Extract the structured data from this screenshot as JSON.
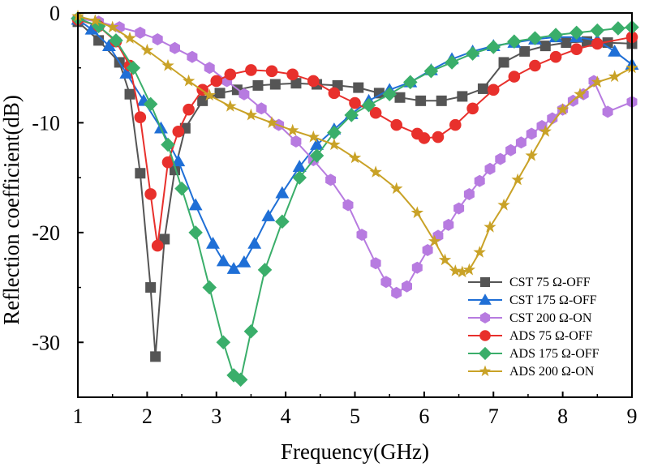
{
  "chart_data": {
    "type": "line",
    "xlabel": "Frequency(GHz)",
    "ylabel": "Reflection coefficient(dB)",
    "xlim": [
      1,
      9
    ],
    "ylim": [
      -35,
      0
    ],
    "xticks": [
      "1",
      "2",
      "3",
      "4",
      "5",
      "6",
      "7",
      "8",
      "9"
    ],
    "yticks": [
      "0",
      "-10",
      "-20",
      "-30"
    ],
    "grid": false,
    "legend_position": "bottom-right",
    "series": [
      {
        "name": "CST 75 Ω-OFF",
        "color": "#555555",
        "marker": "square",
        "x": [
          1.0,
          1.3,
          1.6,
          1.75,
          1.9,
          2.05,
          2.12,
          2.25,
          2.4,
          2.55,
          2.8,
          3.05,
          3.3,
          3.6,
          3.85,
          4.15,
          4.45,
          4.75,
          5.05,
          5.35,
          5.65,
          5.95,
          6.25,
          6.55,
          6.85,
          7.15,
          7.45,
          7.75,
          8.05,
          8.35,
          8.65,
          9.0
        ],
        "y": [
          -0.8,
          -2.5,
          -4.5,
          -7.4,
          -14.6,
          -25.0,
          -31.3,
          -20.6,
          -14.3,
          -10.5,
          -8.0,
          -7.3,
          -7.0,
          -6.6,
          -6.5,
          -6.4,
          -6.5,
          -6.6,
          -6.8,
          -7.3,
          -7.7,
          -8.0,
          -8.0,
          -7.6,
          -6.9,
          -4.5,
          -3.5,
          -3.0,
          -2.7,
          -2.6,
          -2.7,
          -2.8
        ]
      },
      {
        "name": "CST 175 Ω-OFF",
        "color": "#1f6fd6",
        "marker": "triangle",
        "x": [
          1.0,
          1.2,
          1.45,
          1.7,
          1.95,
          2.2,
          2.45,
          2.7,
          2.95,
          3.1,
          3.25,
          3.4,
          3.55,
          3.75,
          3.95,
          4.2,
          4.45,
          4.7,
          4.95,
          5.2,
          5.5,
          5.8,
          6.1,
          6.4,
          6.7,
          7.0,
          7.3,
          7.6,
          7.9,
          8.2,
          8.5,
          8.75,
          9.0
        ],
        "y": [
          -0.6,
          -1.5,
          -3.0,
          -5.5,
          -8.0,
          -10.5,
          -13.5,
          -17.5,
          -21.0,
          -22.6,
          -23.3,
          -22.7,
          -21.0,
          -18.5,
          -16.4,
          -14.0,
          -12.0,
          -10.6,
          -9.2,
          -8.0,
          -7.0,
          -6.3,
          -5.2,
          -4.2,
          -3.5,
          -3.0,
          -2.7,
          -2.4,
          -2.2,
          -2.2,
          -2.5,
          -3.5,
          -4.7
        ]
      },
      {
        "name": "CST 200 Ω-ON",
        "color": "#b77be0",
        "marker": "hexagon",
        "x": [
          1.0,
          1.3,
          1.6,
          1.9,
          2.15,
          2.4,
          2.65,
          2.9,
          3.15,
          3.4,
          3.65,
          3.9,
          4.15,
          4.4,
          4.65,
          4.9,
          5.1,
          5.3,
          5.45,
          5.6,
          5.75,
          5.9,
          6.05,
          6.2,
          6.35,
          6.5,
          6.65,
          6.8,
          6.95,
          7.1,
          7.25,
          7.4,
          7.55,
          7.7,
          7.85,
          8.0,
          8.15,
          8.3,
          8.45,
          8.65,
          9.0
        ],
        "y": [
          -0.5,
          -0.8,
          -1.3,
          -1.8,
          -2.4,
          -3.2,
          -4.0,
          -5.0,
          -6.2,
          -7.4,
          -8.7,
          -10.2,
          -11.7,
          -13.4,
          -15.2,
          -17.5,
          -20.2,
          -22.8,
          -24.5,
          -25.5,
          -24.9,
          -23.2,
          -21.6,
          -20.3,
          -19.3,
          -17.8,
          -16.5,
          -15.3,
          -14.2,
          -13.3,
          -12.5,
          -11.8,
          -11.0,
          -10.3,
          -9.6,
          -8.8,
          -8.0,
          -7.4,
          -6.2,
          -9.0,
          -8.1
        ]
      },
      {
        "name": "ADS 75 Ω-OFF",
        "color": "#e8302c",
        "marker": "circle",
        "x": [
          1.0,
          1.3,
          1.55,
          1.75,
          1.9,
          2.05,
          2.15,
          2.3,
          2.45,
          2.6,
          2.8,
          3.0,
          3.2,
          3.5,
          3.8,
          4.1,
          4.4,
          4.7,
          5.0,
          5.3,
          5.6,
          5.9,
          6.0,
          6.2,
          6.45,
          6.7,
          7.0,
          7.3,
          7.6,
          7.9,
          8.2,
          8.5,
          9.0
        ],
        "y": [
          -0.6,
          -1.2,
          -2.6,
          -4.8,
          -9.5,
          -16.5,
          -21.2,
          -13.6,
          -10.8,
          -8.8,
          -7.0,
          -6.2,
          -5.6,
          -5.2,
          -5.3,
          -5.6,
          -6.2,
          -7.3,
          -8.2,
          -9.1,
          -10.2,
          -11.0,
          -11.4,
          -11.3,
          -10.2,
          -8.7,
          -7.0,
          -5.8,
          -4.8,
          -4.0,
          -3.3,
          -2.8,
          -2.2
        ]
      },
      {
        "name": "ADS 175 Ω-OFF",
        "color": "#3aae6a",
        "marker": "diamond",
        "x": [
          1.0,
          1.3,
          1.55,
          1.8,
          2.05,
          2.3,
          2.5,
          2.7,
          2.9,
          3.1,
          3.25,
          3.35,
          3.5,
          3.7,
          3.95,
          4.2,
          4.45,
          4.7,
          4.95,
          5.2,
          5.5,
          5.8,
          6.1,
          6.4,
          6.7,
          7.0,
          7.3,
          7.6,
          7.9,
          8.2,
          8.5,
          8.8,
          9.0
        ],
        "y": [
          -0.5,
          -1.2,
          -2.5,
          -5.0,
          -8.3,
          -12.0,
          -16.0,
          -20.0,
          -25.0,
          -30.0,
          -33.0,
          -33.4,
          -29.0,
          -23.4,
          -19.0,
          -15.0,
          -13.0,
          -10.9,
          -9.3,
          -8.4,
          -7.4,
          -6.3,
          -5.3,
          -4.5,
          -3.7,
          -3.1,
          -2.6,
          -2.3,
          -2.0,
          -1.8,
          -1.6,
          -1.4,
          -1.3
        ]
      },
      {
        "name": "ADS 200 Ω-ON",
        "color": "#c9a227",
        "marker": "star",
        "x": [
          1.0,
          1.25,
          1.5,
          1.75,
          2.0,
          2.3,
          2.6,
          2.9,
          3.2,
          3.5,
          3.8,
          4.1,
          4.4,
          4.7,
          5.0,
          5.3,
          5.6,
          5.9,
          6.15,
          6.3,
          6.45,
          6.55,
          6.65,
          6.8,
          6.95,
          7.15,
          7.35,
          7.55,
          7.75,
          8.0,
          8.25,
          8.5,
          8.75,
          9.0
        ],
        "y": [
          -0.3,
          -0.7,
          -1.3,
          -2.3,
          -3.4,
          -4.8,
          -6.2,
          -7.5,
          -8.5,
          -9.3,
          -10.0,
          -10.7,
          -11.3,
          -12.0,
          -13.2,
          -14.5,
          -16.0,
          -18.2,
          -20.8,
          -22.5,
          -23.5,
          -23.6,
          -23.4,
          -21.8,
          -19.5,
          -17.5,
          -15.2,
          -13.0,
          -10.8,
          -8.8,
          -7.4,
          -6.3,
          -5.8,
          -5.0
        ]
      }
    ]
  }
}
